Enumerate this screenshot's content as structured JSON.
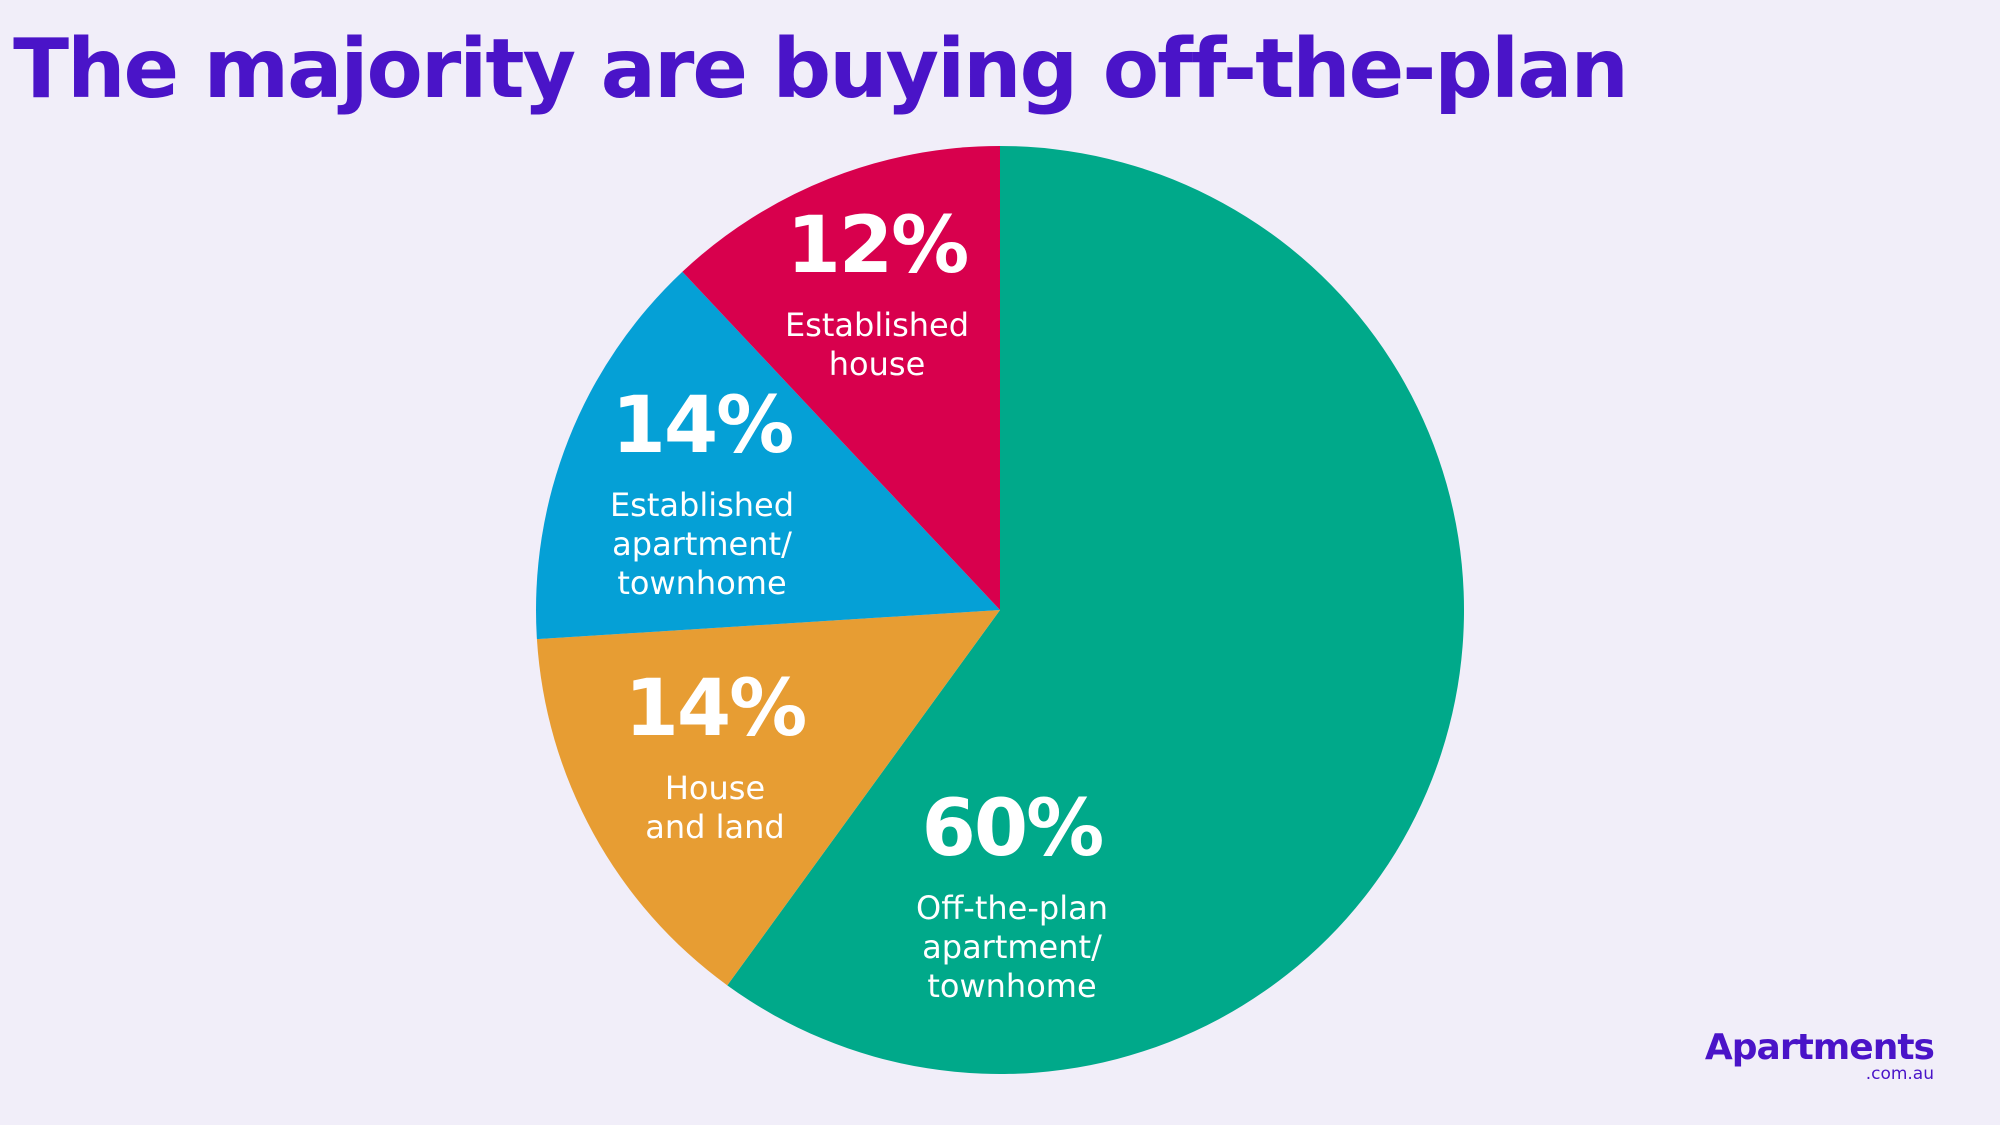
{
  "title": "The majority are buying off-the-plan",
  "chart_data": {
    "type": "pie",
    "title": "The majority are buying off-the-plan",
    "start_angle_deg": 0,
    "direction": "clockwise",
    "slices": [
      {
        "value": 60,
        "pct_label": "60%",
        "label_lines": [
          "Off-the-plan",
          "apartment/",
          "townhome"
        ],
        "color": "#00a98a"
      },
      {
        "value": 14,
        "pct_label": "14%",
        "label_lines": [
          "House",
          "and land"
        ],
        "color": "#e79d33"
      },
      {
        "value": 14,
        "pct_label": "14%",
        "label_lines": [
          "Established",
          "apartment/",
          "townhome"
        ],
        "color": "#05a0d6"
      },
      {
        "value": 12,
        "pct_label": "12%",
        "label_lines": [
          "Established",
          "house"
        ],
        "color": "#d8004d"
      }
    ]
  },
  "logo": {
    "main": "Apartments",
    "sub": ".com.au"
  }
}
